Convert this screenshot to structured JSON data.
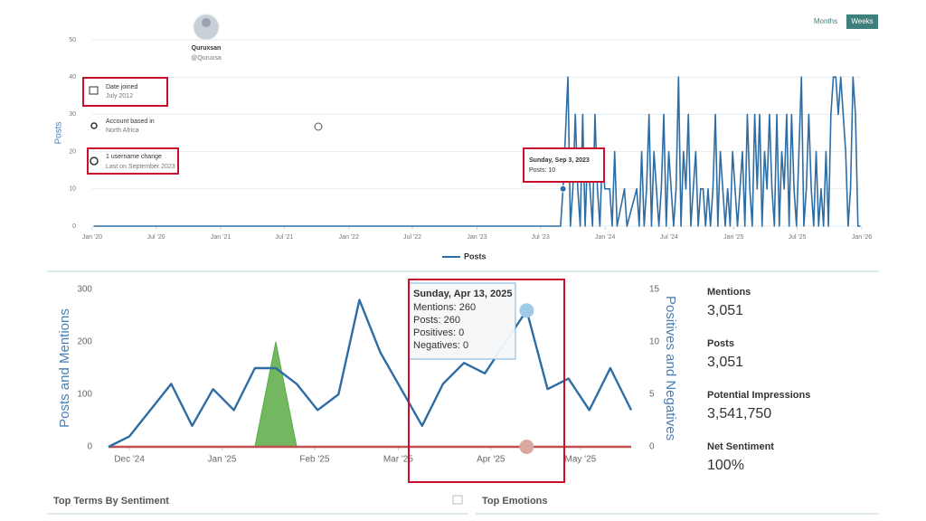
{
  "toggle": [
    "Months",
    "Weeks"
  ],
  "profile": {
    "name": "Quruxsan",
    "handle": "@Quruxsa",
    "details": [
      {
        "label": "Date joined",
        "value": "July 2012"
      },
      {
        "label": "Account based in",
        "value": "North Africa"
      },
      {
        "label": "1 username change",
        "value": "Last on September 2023"
      }
    ]
  },
  "chart_data": [
    {
      "type": "line",
      "y_label": "Posts",
      "grid": true,
      "legend": true,
      "xlim": [
        "2020-01-01",
        "2026-01-01"
      ],
      "xticks": [
        {
          "value": "2020-01-01",
          "label": "Jan '20"
        },
        {
          "value": "2020-07-01",
          "label": "Jul '20"
        },
        {
          "value": "2021-01-01",
          "label": "Jan '21"
        },
        {
          "value": "2021-07-01",
          "label": "Jul '21"
        },
        {
          "value": "2022-01-01",
          "label": "Jan '22"
        },
        {
          "value": "2022-07-01",
          "label": "Jul '22"
        },
        {
          "value": "2023-01-01",
          "label": "Jan '23"
        },
        {
          "value": "2023-07-01",
          "label": "Jul '23"
        },
        {
          "value": "2024-01-01",
          "label": "Jan '24"
        },
        {
          "value": "2024-07-01",
          "label": "Jul '24"
        },
        {
          "value": "2025-01-01",
          "label": "Jan '25"
        },
        {
          "value": "2025-07-01",
          "label": "Jul '25"
        },
        {
          "value": "2026-01-01",
          "label": "Jan '26"
        }
      ],
      "ylim": [
        0,
        50
      ],
      "yticks": [
        0,
        10,
        20,
        30,
        40,
        50
      ],
      "x": [
        "2020-01-05",
        "2023-08-27",
        "2023-09-03",
        "2023-09-17",
        "2023-09-24",
        "2023-10-01",
        "2023-10-08",
        "2023-10-15",
        "2023-10-22",
        "2023-10-29",
        "2023-11-05",
        "2023-11-12",
        "2023-11-19",
        "2023-11-26",
        "2023-12-03",
        "2023-12-10",
        "2023-12-17",
        "2023-12-24",
        "2023-12-31",
        "2024-01-07",
        "2024-01-14",
        "2024-01-21",
        "2024-01-28",
        "2024-02-04",
        "2024-02-25",
        "2024-03-03",
        "2024-03-31",
        "2024-04-07",
        "2024-04-14",
        "2024-04-21",
        "2024-04-28",
        "2024-05-05",
        "2024-05-12",
        "2024-05-19",
        "2024-05-26",
        "2024-06-02",
        "2024-06-09",
        "2024-06-16",
        "2024-06-23",
        "2024-06-30",
        "2024-07-07",
        "2024-07-14",
        "2024-07-21",
        "2024-07-28",
        "2024-08-04",
        "2024-08-11",
        "2024-08-18",
        "2024-08-25",
        "2024-09-01",
        "2024-09-08",
        "2024-09-15",
        "2024-09-22",
        "2024-09-29",
        "2024-10-06",
        "2024-10-13",
        "2024-10-20",
        "2024-10-27",
        "2024-11-03",
        "2024-11-10",
        "2024-11-17",
        "2024-11-24",
        "2024-12-01",
        "2024-12-08",
        "2024-12-15",
        "2024-12-22",
        "2024-12-29",
        "2025-01-05",
        "2025-01-12",
        "2025-01-19",
        "2025-01-26",
        "2025-02-02",
        "2025-02-09",
        "2025-02-16",
        "2025-02-23",
        "2025-03-02",
        "2025-03-09",
        "2025-03-16",
        "2025-03-23",
        "2025-03-30",
        "2025-04-06",
        "2025-04-13",
        "2025-04-20",
        "2025-04-27",
        "2025-05-04",
        "2025-05-11",
        "2025-05-18",
        "2025-05-25",
        "2025-06-01",
        "2025-06-08",
        "2025-06-15",
        "2025-06-22",
        "2025-06-29",
        "2025-07-06",
        "2025-07-13",
        "2025-07-20",
        "2025-07-27",
        "2025-08-03",
        "2025-08-10",
        "2025-08-17",
        "2025-08-24",
        "2025-08-31",
        "2025-09-07",
        "2025-09-14",
        "2025-09-21",
        "2025-09-28",
        "2025-10-05",
        "2025-10-12",
        "2025-10-19",
        "2025-10-26",
        "2025-11-02",
        "2025-11-09",
        "2025-11-16",
        "2025-11-23",
        "2025-11-30",
        "2025-12-07",
        "2025-12-14",
        "2025-12-21",
        "2025-12-28"
      ],
      "series": [
        {
          "name": "Posts",
          "color": "#2e6da4",
          "type": "line",
          "values": [
            0,
            0,
            10,
            40,
            0,
            10,
            30,
            10,
            0,
            30,
            0,
            20,
            10,
            0,
            30,
            10,
            0,
            20,
            10,
            10,
            10,
            0,
            20,
            0,
            10,
            0,
            10,
            0,
            20,
            0,
            10,
            30,
            0,
            20,
            10,
            0,
            10,
            30,
            0,
            20,
            10,
            0,
            10,
            40,
            0,
            20,
            10,
            30,
            0,
            10,
            20,
            0,
            10,
            10,
            0,
            10,
            0,
            10,
            30,
            0,
            20,
            10,
            0,
            10,
            0,
            20,
            10,
            0,
            10,
            20,
            0,
            30,
            10,
            0,
            30,
            10,
            30,
            0,
            20,
            10,
            30,
            10,
            0,
            30,
            0,
            20,
            10,
            30,
            0,
            30,
            10,
            0,
            20,
            40,
            0,
            10,
            30,
            10,
            0,
            20,
            0,
            10,
            0,
            20,
            0,
            30,
            40,
            40,
            30,
            40,
            30,
            20,
            0,
            10,
            40,
            30,
            0,
            0
          ]
        }
      ],
      "tooltip": {
        "title": "Sunday, Sep 3, 2023",
        "lines": [
          "Posts: 10"
        ]
      }
    },
    {
      "type": "line",
      "y_label": "Posts and Mentions",
      "y2_label": "Positives and Negatives",
      "grid": false,
      "legend": false,
      "xlim": [
        "2024-11-24",
        "2025-05-18"
      ],
      "xticks": [
        {
          "value": "2024-12-01",
          "label": "Dec '24"
        },
        {
          "value": "2025-01-01",
          "label": "Jan '25"
        },
        {
          "value": "2025-02-01",
          "label": "Feb '25"
        },
        {
          "value": "2025-03-01",
          "label": "Mar '25"
        },
        {
          "value": "2025-04-01",
          "label": "Apr '25"
        },
        {
          "value": "2025-05-01",
          "label": "May '25"
        }
      ],
      "ylim": [
        0,
        300
      ],
      "yticks": [
        0,
        100,
        200,
        300
      ],
      "y2lim": [
        0,
        15
      ],
      "y2ticks": [
        0,
        5,
        10,
        15
      ],
      "x": [
        "2024-11-24",
        "2024-12-01",
        "2024-12-08",
        "2024-12-15",
        "2024-12-22",
        "2024-12-29",
        "2025-01-05",
        "2025-01-12",
        "2025-01-19",
        "2025-01-26",
        "2025-02-02",
        "2025-02-09",
        "2025-02-16",
        "2025-02-23",
        "2025-03-02",
        "2025-03-09",
        "2025-03-16",
        "2025-03-23",
        "2025-03-30",
        "2025-04-06",
        "2025-04-13",
        "2025-04-20",
        "2025-04-27",
        "2025-05-04",
        "2025-05-11",
        "2025-05-18"
      ],
      "series": [
        {
          "name": "Positives",
          "color": "#5aac44",
          "type": "area",
          "axis": "y2",
          "values": [
            0,
            0,
            0,
            0,
            0,
            0,
            0,
            0,
            10,
            0,
            0,
            0,
            0,
            0,
            0,
            0,
            0,
            0,
            0,
            0,
            0,
            0,
            0,
            0,
            0,
            0
          ]
        },
        {
          "name": "Negatives",
          "color": "#c0504d",
          "type": "line",
          "axis": "y2",
          "values": [
            0,
            0,
            0,
            0,
            0,
            0,
            0,
            0,
            0,
            0,
            0,
            0,
            0,
            0,
            0,
            0,
            0,
            0,
            0,
            0,
            0,
            0,
            0,
            0,
            0,
            0
          ]
        },
        {
          "name": "Mentions",
          "color": "#2e6da4",
          "type": "line",
          "values": [
            0,
            20,
            70,
            120,
            40,
            110,
            70,
            150,
            150,
            120,
            70,
            100,
            280,
            180,
            110,
            40,
            120,
            160,
            140,
            200,
            260,
            110,
            130,
            70,
            150,
            70
          ]
        }
      ],
      "tooltip": {
        "title": "Sunday, Apr 13, 2025",
        "lines": [
          "Mentions: 260",
          "Posts: 260",
          "Positives: 0",
          "Negatives: 0"
        ]
      }
    }
  ],
  "stats": [
    {
      "label": "Mentions",
      "value": "3,051"
    },
    {
      "label": "Posts",
      "value": "3,051"
    },
    {
      "label": "Potential Impressions",
      "value": "3,541,750"
    },
    {
      "label": "Net Sentiment",
      "value": "100%"
    }
  ],
  "sections": [
    "Top Terms By Sentiment",
    "Top Emotions"
  ]
}
